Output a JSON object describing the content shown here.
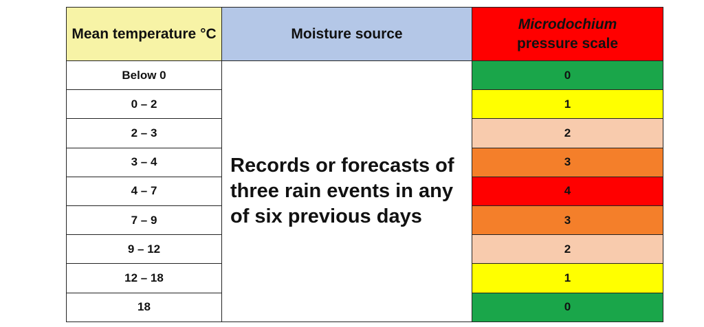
{
  "headers": {
    "temperature": "Mean temperature °C",
    "moisture": "Moisture source",
    "scale_italic": "Microdochium",
    "scale_rest": "pressure scale"
  },
  "moisture_text": "Records or forecasts of three rain events in any of six previous days",
  "rows": [
    {
      "temperature": "Below 0",
      "pressure": "0",
      "color": "#1aa64a"
    },
    {
      "temperature": "0 – 2",
      "pressure": "1",
      "color": "#ffff00"
    },
    {
      "temperature": "2 – 3",
      "pressure": "2",
      "color": "#f8cbad"
    },
    {
      "temperature": "3 – 4",
      "pressure": "3",
      "color": "#f47f2a"
    },
    {
      "temperature": "4 – 7",
      "pressure": "4",
      "color": "#ff0000"
    },
    {
      "temperature": "7 – 9",
      "pressure": "3",
      "color": "#f47f2a"
    },
    {
      "temperature": "9 – 12",
      "pressure": "2",
      "color": "#f8cbad"
    },
    {
      "temperature": "12 – 18",
      "pressure": "1",
      "color": "#ffff00"
    },
    {
      "temperature": "18",
      "pressure": "0",
      "color": "#1aa64a"
    }
  ],
  "colors": {
    "temperature_header": "#f7f3a6",
    "moisture_header": "#b4c7e7",
    "scale_header": "#ff0000"
  }
}
